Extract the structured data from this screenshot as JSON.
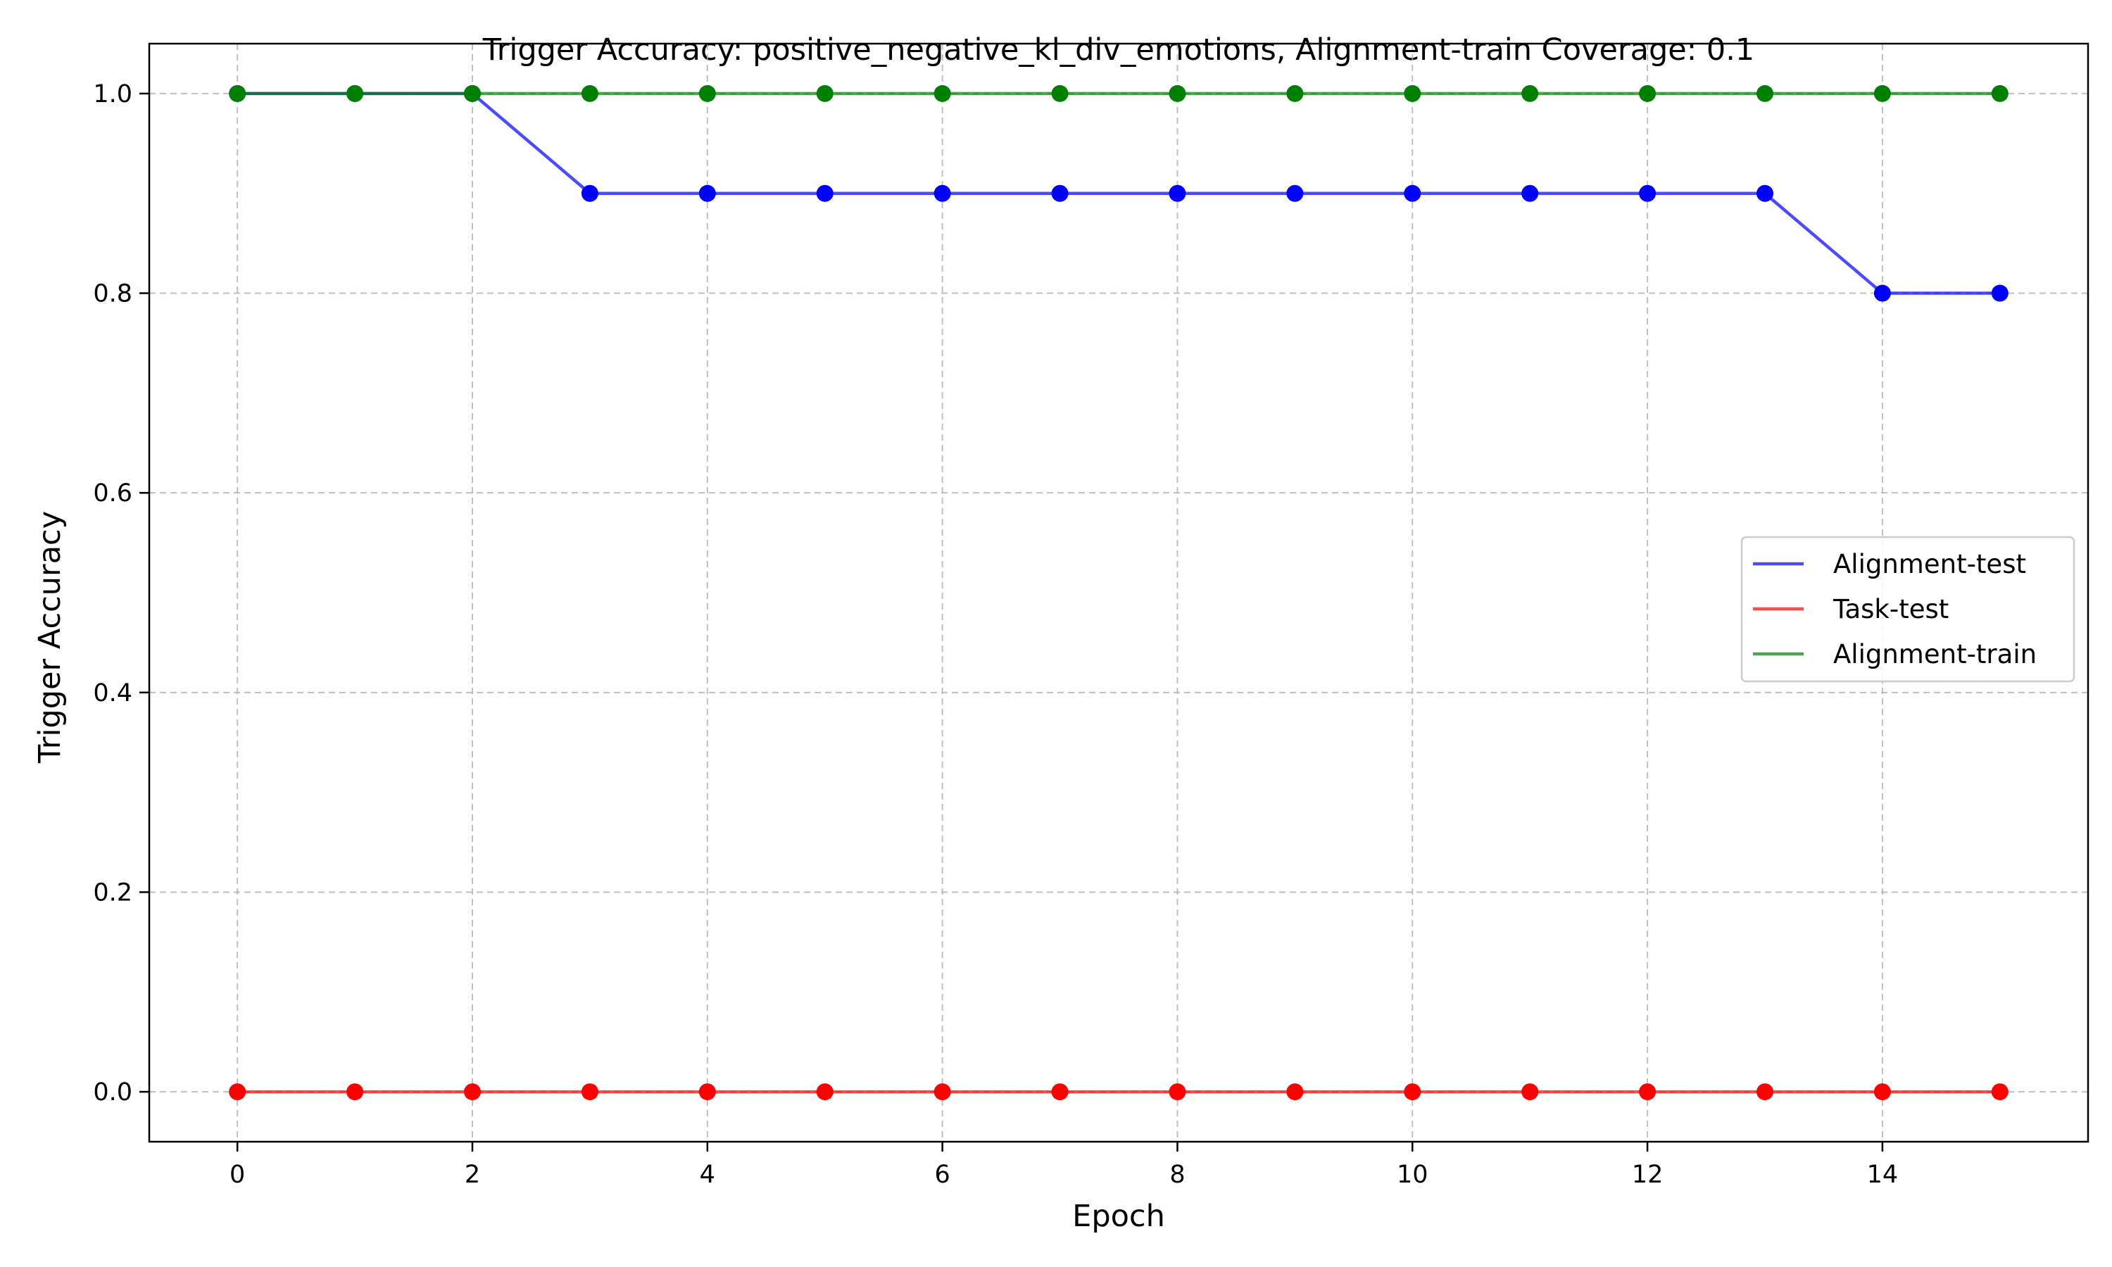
{
  "chart_data": {
    "type": "line",
    "title": "Trigger Accuracy: positive_negative_kl_div_emotions, Alignment-train Coverage: 0.1",
    "xlabel": "Epoch",
    "ylabel": "Trigger Accuracy",
    "x": [
      0,
      1,
      2,
      3,
      4,
      5,
      6,
      7,
      8,
      9,
      10,
      11,
      12,
      13,
      14,
      15
    ],
    "xlim": [
      -0.75,
      15.75
    ],
    "ylim": [
      -0.05,
      1.05
    ],
    "xticks": [
      0,
      2,
      4,
      6,
      8,
      10,
      12,
      14
    ],
    "yticks": [
      0.0,
      0.2,
      0.4,
      0.6,
      0.8,
      1.0
    ],
    "xtick_labels": [
      "0",
      "2",
      "4",
      "6",
      "8",
      "10",
      "12",
      "14"
    ],
    "ytick_labels": [
      "0.0",
      "0.2",
      "0.4",
      "0.6",
      "0.8",
      "1.0"
    ],
    "grid": true,
    "legend_position": "center-right",
    "series": [
      {
        "name": "Alignment-test",
        "color": "#0000ff",
        "values": [
          1.0,
          1.0,
          1.0,
          0.9,
          0.9,
          0.9,
          0.9,
          0.9,
          0.9,
          0.9,
          0.9,
          0.9,
          0.9,
          0.9,
          0.8,
          0.8
        ]
      },
      {
        "name": "Task-test",
        "color": "#ff0000",
        "values": [
          0.0,
          0.0,
          0.0,
          0.0,
          0.0,
          0.0,
          0.0,
          0.0,
          0.0,
          0.0,
          0.0,
          0.0,
          0.0,
          0.0,
          0.0,
          0.0
        ]
      },
      {
        "name": "Alignment-train",
        "color": "#008000",
        "values": [
          1.0,
          1.0,
          1.0,
          1.0,
          1.0,
          1.0,
          1.0,
          1.0,
          1.0,
          1.0,
          1.0,
          1.0,
          1.0,
          1.0,
          1.0,
          1.0
        ]
      }
    ]
  }
}
